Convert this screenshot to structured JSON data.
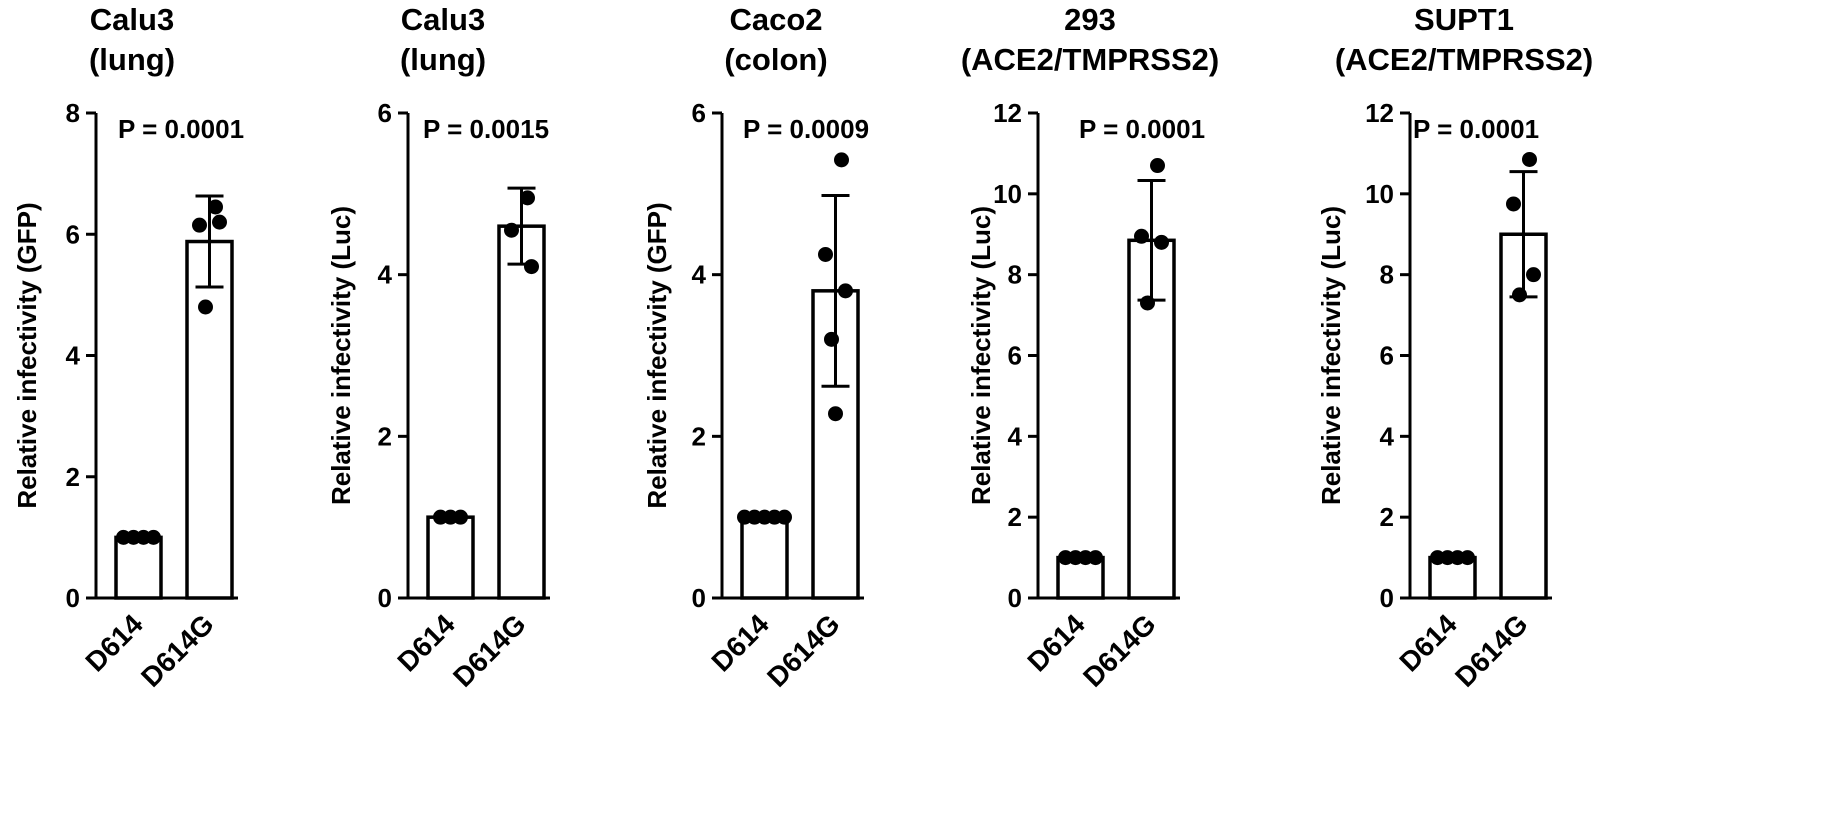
{
  "chart_data": [
    {
      "type": "bar",
      "title": [
        "Calu3",
        "(lung)"
      ],
      "ylabel": "Relative infectivity (GFP)",
      "categories": [
        "D614",
        "D614G"
      ],
      "ylim": [
        0,
        8
      ],
      "yticks": [
        0,
        2,
        4,
        6,
        8
      ],
      "p_value": "P = 0.0001",
      "bars": [
        {
          "category": "D614",
          "mean": 1.0,
          "error": 0,
          "points": [
            1.0,
            1.0,
            1.0,
            1.0
          ]
        },
        {
          "category": "D614G",
          "mean": 5.88,
          "error": 0.75,
          "points": [
            6.45,
            6.15,
            6.2,
            4.8
          ]
        }
      ]
    },
    {
      "type": "bar",
      "title": [
        "Calu3",
        "(lung)"
      ],
      "ylabel": "Relative infectivity (Luc)",
      "categories": [
        "D614",
        "D614G"
      ],
      "ylim": [
        0,
        6
      ],
      "yticks": [
        0,
        2,
        4,
        6
      ],
      "p_value": "P = 0.0015",
      "bars": [
        {
          "category": "D614",
          "mean": 1.0,
          "error": 0,
          "points": [
            1.0,
            1.0,
            1.0
          ]
        },
        {
          "category": "D614G",
          "mean": 4.6,
          "error": 0.47,
          "points": [
            4.95,
            4.55,
            4.1
          ]
        }
      ]
    },
    {
      "type": "bar",
      "title": [
        "Caco2",
        "(colon)"
      ],
      "ylabel": "Relative infectivity (GFP)",
      "categories": [
        "D614",
        "D614G"
      ],
      "ylim": [
        0,
        6
      ],
      "yticks": [
        0,
        2,
        4,
        6
      ],
      "p_value": "P = 0.0009",
      "bars": [
        {
          "category": "D614",
          "mean": 1.0,
          "error": 0,
          "points": [
            1.0,
            1.0,
            1.0,
            1.0,
            1.0
          ]
        },
        {
          "category": "D614G",
          "mean": 3.8,
          "error": 1.18,
          "points": [
            5.42,
            4.25,
            3.8,
            3.2,
            2.28
          ]
        }
      ]
    },
    {
      "type": "bar",
      "title": [
        "293",
        "(ACE2/TMPRSS2)"
      ],
      "ylabel": "Relative infectivity (Luc)",
      "categories": [
        "D614",
        "D614G"
      ],
      "ylim": [
        0,
        12
      ],
      "yticks": [
        0,
        2,
        4,
        6,
        8,
        10,
        12
      ],
      "p_value": "P = 0.0001",
      "bars": [
        {
          "category": "D614",
          "mean": 1.0,
          "error": 0,
          "points": [
            1.0,
            1.0,
            1.0,
            1.0
          ]
        },
        {
          "category": "D614G",
          "mean": 8.85,
          "error": 1.48,
          "points": [
            10.7,
            8.95,
            8.8,
            7.3
          ]
        }
      ]
    },
    {
      "type": "bar",
      "title": [
        "SUPT1",
        "(ACE2/TMPRSS2)"
      ],
      "ylabel": "Relative infectivity (Luc)",
      "categories": [
        "D614",
        "D614G"
      ],
      "ylim": [
        0,
        12
      ],
      "yticks": [
        0,
        2,
        4,
        6,
        8,
        10,
        12
      ],
      "p_value": "P = 0.0001",
      "bars": [
        {
          "category": "D614",
          "mean": 1.0,
          "error": 0,
          "points": [
            1.0,
            1.0,
            1.0,
            1.0
          ]
        },
        {
          "category": "D614G",
          "mean": 9.0,
          "error": 1.55,
          "points": [
            10.85,
            9.75,
            8.0,
            7.5
          ]
        }
      ]
    }
  ]
}
